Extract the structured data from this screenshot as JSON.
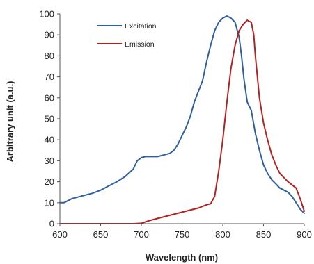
{
  "chart_data": {
    "type": "line",
    "title": "",
    "xlabel": "Wavelength (nm)",
    "ylabel": "Arbitrary unit (a.u.)",
    "xlim": [
      600,
      900
    ],
    "ylim": [
      0,
      100
    ],
    "xticks": [
      600,
      650,
      700,
      750,
      800,
      850,
      900
    ],
    "yticks": [
      0,
      10,
      20,
      30,
      40,
      50,
      60,
      70,
      80,
      90,
      100
    ],
    "grid": false,
    "legend": "top-left inside",
    "series": [
      {
        "name": "Excitation",
        "color": "#2f5f9e",
        "x": [
          600,
          605,
          610,
          615,
          620,
          630,
          640,
          650,
          660,
          670,
          680,
          690,
          695,
          700,
          705,
          710,
          720,
          730,
          735,
          740,
          745,
          750,
          755,
          760,
          765,
          770,
          775,
          780,
          785,
          790,
          795,
          800,
          805,
          810,
          815,
          820,
          823,
          826,
          830,
          835,
          840,
          845,
          850,
          855,
          860,
          865,
          870,
          880,
          885,
          890,
          895,
          900
        ],
        "y": [
          10,
          10,
          11,
          12,
          12.5,
          13.5,
          14.5,
          16,
          18,
          20,
          22.5,
          26,
          30,
          31.5,
          32,
          32,
          32,
          33,
          33.5,
          35,
          38,
          42,
          46,
          51,
          58,
          63,
          68,
          77,
          85,
          92,
          96,
          98,
          99,
          98,
          96,
          89,
          80,
          69,
          58,
          54,
          43,
          35,
          28,
          24,
          21,
          19,
          17,
          15,
          13,
          10,
          7,
          5
        ]
      },
      {
        "name": "Emission",
        "color": "#b22222",
        "x": [
          600,
          650,
          690,
          700,
          710,
          720,
          730,
          740,
          750,
          760,
          770,
          780,
          785,
          790,
          795,
          800,
          805,
          810,
          815,
          820,
          825,
          830,
          835,
          838,
          840,
          845,
          850,
          855,
          860,
          865,
          870,
          880,
          890,
          895,
          900
        ],
        "y": [
          0,
          0,
          0,
          0.2,
          1.5,
          2.5,
          3.5,
          4.5,
          5.5,
          6.5,
          7.5,
          9,
          9.5,
          13,
          25,
          40,
          58,
          74,
          85,
          92,
          95,
          97,
          96,
          90,
          80,
          60,
          48,
          40,
          33,
          28,
          24,
          20,
          17,
          12,
          6
        ]
      }
    ]
  }
}
